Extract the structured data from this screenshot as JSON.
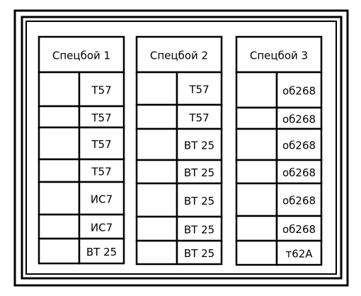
{
  "columns": [
    {
      "title": "Спецбой 1",
      "rows": [
        "Т57",
        "Т57",
        "Т57",
        "Т57",
        "ИС7",
        "ИС7",
        "ВТ 25"
      ]
    },
    {
      "title": "Спецбой 2",
      "rows": [
        "Т57",
        "Т57",
        "ВТ 25",
        "ВТ 25",
        "ВТ 25",
        "ВТ 25",
        "ВТ 25"
      ]
    },
    {
      "title": "Спецбой 3",
      "rows": [
        "об268",
        "об268",
        "об268",
        "об268",
        "об268",
        "об268",
        "т62А"
      ]
    }
  ]
}
